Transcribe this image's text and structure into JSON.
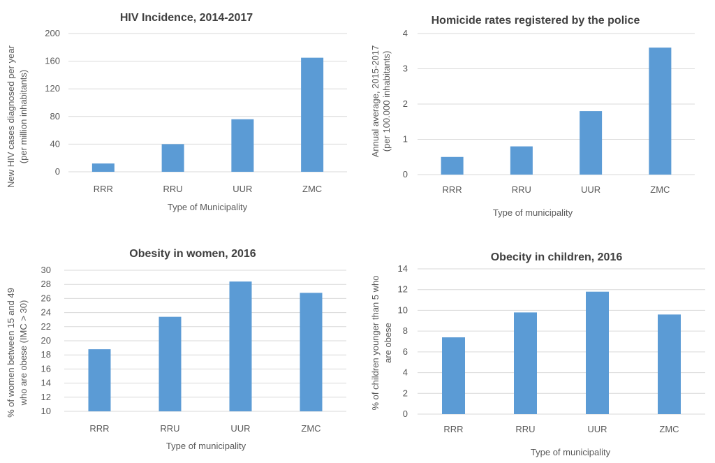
{
  "colors": {
    "bar": "#5b9bd5",
    "grid": "#d9d9d9",
    "text": "#595959",
    "title": "#404040"
  },
  "chart_data": [
    {
      "type": "bar",
      "title": "HIV Incidence, 2014-2017",
      "categories": [
        "RRR",
        "RRU",
        "UUR",
        "ZMC"
      ],
      "values": [
        12,
        40,
        76,
        165
      ],
      "xlabel": "Type of Municipality",
      "ylabel": [
        "New HIV cases diagnosed per year",
        "(per million inhabitants)"
      ],
      "ylim": [
        0,
        200
      ],
      "yticks": [
        0,
        40,
        80,
        120,
        160,
        200
      ],
      "grid": true,
      "legend": "none"
    },
    {
      "type": "bar",
      "title": "Homicide rates registered by the police",
      "categories": [
        "RRR",
        "RRU",
        "UUR",
        "ZMC"
      ],
      "values": [
        0.5,
        0.8,
        1.8,
        3.6
      ],
      "xlabel": "Type of municipality",
      "ylabel": [
        "Annual average, 2015-2017",
        "(per 100.000 inhabitants)"
      ],
      "ylim": [
        0,
        4
      ],
      "yticks": [
        0,
        1,
        2,
        3,
        4
      ],
      "grid": true,
      "legend": "none"
    },
    {
      "type": "bar",
      "title": "Obesity in women, 2016",
      "categories": [
        "RRR",
        "RRU",
        "UUR",
        "ZMC"
      ],
      "values": [
        18.8,
        23.4,
        28.4,
        26.8
      ],
      "xlabel": "Type of municipality",
      "ylabel": [
        "% of women between 15 and 49",
        "who are obese  (IMC > 30)"
      ],
      "ylim": [
        10,
        30
      ],
      "yticks": [
        10,
        12,
        14,
        16,
        18,
        20,
        22,
        24,
        26,
        28,
        30
      ],
      "grid": true,
      "legend": "none"
    },
    {
      "type": "bar",
      "title": "Obecity in children, 2016",
      "categories": [
        "RRR",
        "RRU",
        "UUR",
        "ZMC"
      ],
      "values": [
        7.4,
        9.8,
        11.8,
        9.6
      ],
      "xlabel": "Type of municipality",
      "ylabel": [
        "% of children younger than 5 who",
        "are obese"
      ],
      "ylim": [
        0,
        14
      ],
      "yticks": [
        0,
        2,
        4,
        6,
        8,
        10,
        12,
        14
      ],
      "grid": true,
      "legend": "none"
    }
  ]
}
